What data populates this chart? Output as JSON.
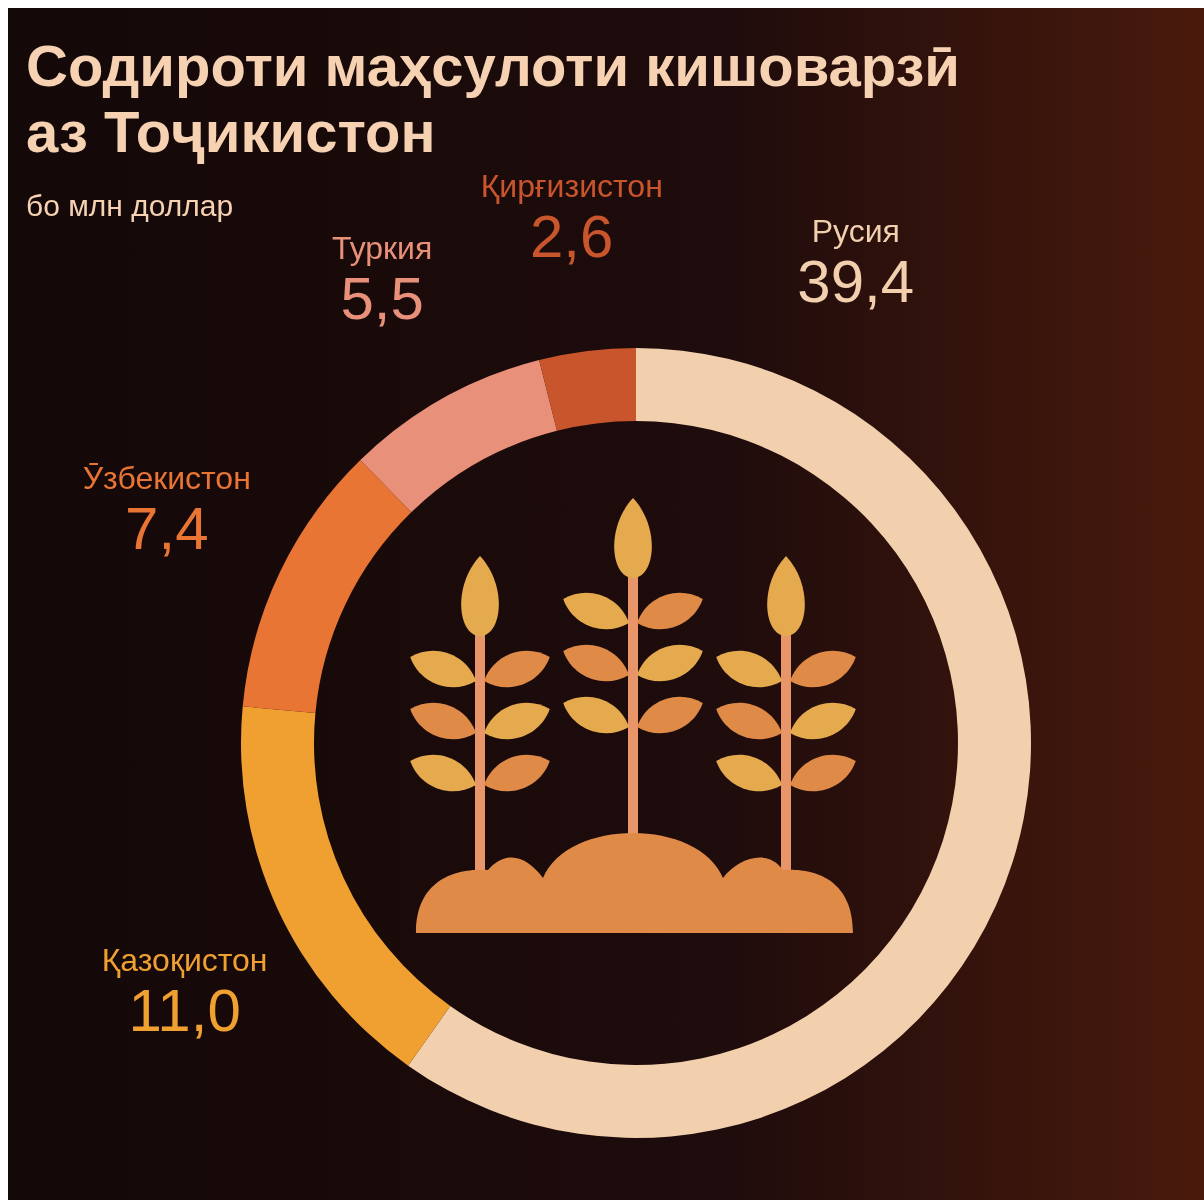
{
  "chart_data": {
    "type": "donut",
    "title": "Содироти маҳсулоти кишоварзӣ аз Тоҷикистон",
    "subtitle": "бо млн доллар",
    "categories": [
      "Русия",
      "Қазоқистон",
      "Ӯзбекистон",
      "Туркия",
      "Қирғизистон"
    ],
    "values": [
      39.4,
      11.0,
      7.4,
      5.5,
      2.6
    ],
    "colors": [
      "#f2d0ae",
      "#f0a030",
      "#e87534",
      "#e8907a",
      "#c8552c"
    ],
    "value_labels": [
      "39,4",
      "11,0",
      "7,4",
      "5,5",
      "2,6"
    ]
  }
}
